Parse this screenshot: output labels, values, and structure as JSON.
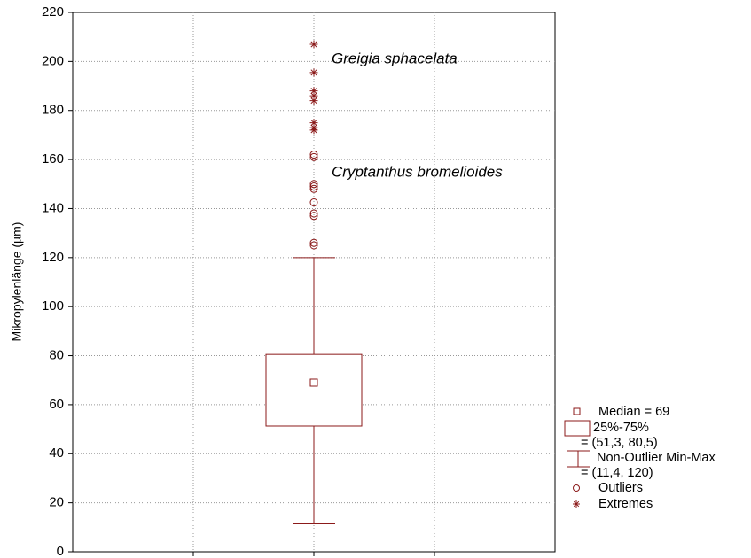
{
  "chart_data": {
    "type": "box",
    "ylabel": "Mikropylenlänge (µm)",
    "ylim": [
      0,
      220
    ],
    "yticks": [
      0,
      20,
      40,
      60,
      80,
      100,
      120,
      140,
      160,
      180,
      200,
      220
    ],
    "grid": true,
    "color": "#8b1a1a",
    "boxes": [
      {
        "median": 69,
        "q1": 51.3,
        "q3": 80.5,
        "whisker_low": 11.4,
        "whisker_high": 120,
        "outliers": [
          162,
          161,
          150,
          149,
          148,
          142.5,
          138,
          137,
          126,
          125
        ],
        "extremes": [
          207,
          195.5,
          188,
          186,
          184,
          175,
          173,
          172
        ]
      }
    ],
    "annotations": [
      "Greigia sphacelata",
      "Cryptanthus bromelioides"
    ],
    "legend": [
      "Median = 69",
      "25%-75%",
      "= (51,3, 80,5)",
      "Non-Outlier Min-Max",
      "= (11,4, 120)",
      "Outliers",
      "Extremes"
    ]
  }
}
